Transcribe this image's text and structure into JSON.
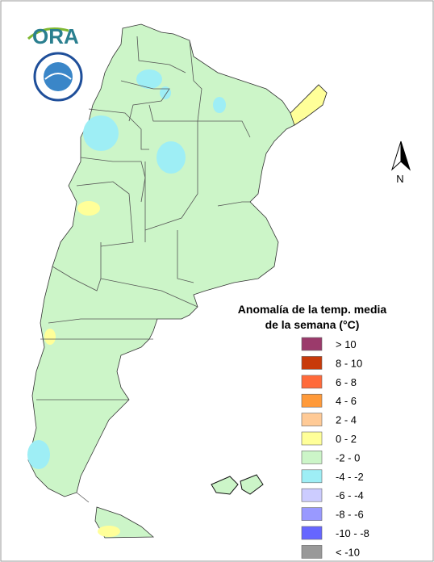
{
  "logo": {
    "text": "ORA"
  },
  "north_arrow": {
    "label": "N"
  },
  "legend": {
    "title_lines": [
      "Anomalía de la temp. media",
      "de la semana (°C)"
    ],
    "items": [
      {
        "label": "> 10",
        "color": "#9b3a6b"
      },
      {
        "label": "8 - 10",
        "color": "#c83a0a"
      },
      {
        "label": "6 - 8",
        "color": "#ff6a3a"
      },
      {
        "label": "4 - 6",
        "color": "#ff9a3a"
      },
      {
        "label": "2 - 4",
        "color": "#ffca96"
      },
      {
        "label": "0 - 2",
        "color": "#ffff99"
      },
      {
        "label": "-2 - 0",
        "color": "#ccf5c8"
      },
      {
        "label": "-4 - -2",
        "color": "#9eeef5"
      },
      {
        "label": "-6 - -4",
        "color": "#ccccff"
      },
      {
        "label": "-8 - -6",
        "color": "#9999ff"
      },
      {
        "label": "-10 - -8",
        "color": "#6666ff"
      },
      {
        "label": "< -10",
        "color": "#999999"
      }
    ]
  }
}
